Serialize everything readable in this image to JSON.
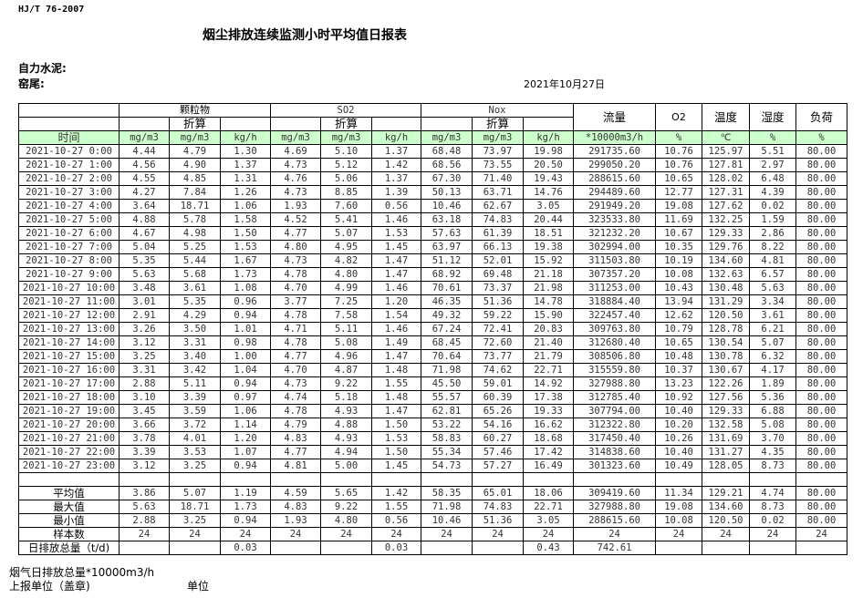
{
  "standard": "HJ/T  76-2007",
  "title": "烟尘排放连续监测小时平均值日报表",
  "company": "自力水泥:",
  "kiln": "窑尾:",
  "date": "2021年10月27日",
  "header": {
    "particulate": "颗粒物",
    "so2": "SO2",
    "nox": "Nox",
    "converted": "折算",
    "flow": "流量",
    "o2": "O2",
    "temperature": "温度",
    "humidity": "湿度",
    "load": "负荷",
    "time": "时间",
    "units": [
      "mg/m3",
      "mg/m3",
      "kg/h",
      "mg/m3",
      "mg/m3",
      "kg/h",
      "mg/m3",
      "mg/m3",
      "kg/h",
      "*10000m3/h",
      "%",
      "℃",
      "%",
      "%"
    ]
  },
  "rows": [
    [
      "2021-10-27 0:00",
      "4.44",
      "4.79",
      "1.30",
      "4.69",
      "5.10",
      "1.37",
      "68.48",
      "73.97",
      "19.98",
      "291735.60",
      "10.76",
      "125.97",
      "5.51",
      "80.00"
    ],
    [
      "2021-10-27 1:00",
      "4.56",
      "4.90",
      "1.37",
      "4.73",
      "5.12",
      "1.42",
      "68.56",
      "73.55",
      "20.50",
      "299050.20",
      "10.76",
      "127.81",
      "2.97",
      "80.00"
    ],
    [
      "2021-10-27 2:00",
      "4.55",
      "4.85",
      "1.31",
      "4.76",
      "5.06",
      "1.37",
      "67.30",
      "71.40",
      "19.43",
      "288615.60",
      "10.65",
      "128.02",
      "6.48",
      "80.00"
    ],
    [
      "2021-10-27 3:00",
      "4.27",
      "7.84",
      "1.26",
      "4.73",
      "8.85",
      "1.39",
      "50.13",
      "63.71",
      "14.76",
      "294489.60",
      "12.77",
      "127.31",
      "4.39",
      "80.00"
    ],
    [
      "2021-10-27 4:00",
      "3.64",
      "18.71",
      "1.06",
      "1.93",
      "7.60",
      "0.56",
      "10.46",
      "62.67",
      "3.05",
      "291949.20",
      "19.08",
      "127.62",
      "0.02",
      "80.00"
    ],
    [
      "2021-10-27 5:00",
      "4.88",
      "5.78",
      "1.58",
      "4.52",
      "5.41",
      "1.46",
      "63.18",
      "74.83",
      "20.44",
      "323533.80",
      "11.69",
      "132.25",
      "1.59",
      "80.00"
    ],
    [
      "2021-10-27 6:00",
      "4.67",
      "4.98",
      "1.50",
      "4.77",
      "5.07",
      "1.53",
      "57.63",
      "61.39",
      "18.51",
      "321232.20",
      "10.67",
      "129.33",
      "2.86",
      "80.00"
    ],
    [
      "2021-10-27 7:00",
      "5.04",
      "5.25",
      "1.53",
      "4.80",
      "4.95",
      "1.45",
      "63.97",
      "66.13",
      "19.38",
      "302994.00",
      "10.35",
      "129.76",
      "8.22",
      "80.00"
    ],
    [
      "2021-10-27 8:00",
      "5.35",
      "5.44",
      "1.67",
      "4.73",
      "4.82",
      "1.47",
      "51.12",
      "52.01",
      "15.92",
      "311503.80",
      "10.19",
      "134.60",
      "4.81",
      "80.00"
    ],
    [
      "2021-10-27 9:00",
      "5.63",
      "5.68",
      "1.73",
      "4.78",
      "4.80",
      "1.47",
      "68.92",
      "69.48",
      "21.18",
      "307357.20",
      "10.08",
      "132.63",
      "6.57",
      "80.00"
    ],
    [
      "2021-10-27 10:00",
      "3.48",
      "3.61",
      "1.08",
      "4.70",
      "4.99",
      "1.46",
      "70.61",
      "73.37",
      "21.98",
      "311253.00",
      "10.43",
      "130.48",
      "5.63",
      "80.00"
    ],
    [
      "2021-10-27 11:00",
      "3.01",
      "5.35",
      "0.96",
      "3.77",
      "7.25",
      "1.20",
      "46.35",
      "51.36",
      "14.78",
      "318884.40",
      "13.94",
      "131.29",
      "3.34",
      "80.00"
    ],
    [
      "2021-10-27 12:00",
      "2.91",
      "4.29",
      "0.94",
      "4.78",
      "7.58",
      "1.54",
      "49.32",
      "59.22",
      "15.90",
      "322457.40",
      "12.62",
      "120.50",
      "3.61",
      "80.00"
    ],
    [
      "2021-10-27 13:00",
      "3.26",
      "3.50",
      "1.01",
      "4.71",
      "5.11",
      "1.46",
      "67.24",
      "72.41",
      "20.83",
      "309763.80",
      "10.79",
      "128.78",
      "6.21",
      "80.00"
    ],
    [
      "2021-10-27 14:00",
      "3.12",
      "3.31",
      "0.98",
      "4.78",
      "5.08",
      "1.49",
      "68.45",
      "72.60",
      "21.40",
      "312680.40",
      "10.65",
      "130.54",
      "5.07",
      "80.00"
    ],
    [
      "2021-10-27 15:00",
      "3.25",
      "3.40",
      "1.00",
      "4.77",
      "4.96",
      "1.47",
      "70.64",
      "73.77",
      "21.79",
      "308506.80",
      "10.48",
      "130.78",
      "6.32",
      "80.00"
    ],
    [
      "2021-10-27 16:00",
      "3.31",
      "3.42",
      "1.04",
      "4.70",
      "4.87",
      "1.48",
      "71.98",
      "74.62",
      "22.71",
      "315559.80",
      "10.37",
      "130.67",
      "4.17",
      "80.00"
    ],
    [
      "2021-10-27 17:00",
      "2.88",
      "5.11",
      "0.94",
      "4.73",
      "9.22",
      "1.55",
      "45.50",
      "59.01",
      "14.92",
      "327988.80",
      "13.23",
      "122.26",
      "1.89",
      "80.00"
    ],
    [
      "2021-10-27 18:00",
      "3.10",
      "3.39",
      "0.97",
      "4.74",
      "5.18",
      "1.48",
      "55.57",
      "60.39",
      "17.38",
      "312785.40",
      "10.92",
      "127.56",
      "5.36",
      "80.00"
    ],
    [
      "2021-10-27 19:00",
      "3.45",
      "3.59",
      "1.06",
      "4.78",
      "4.93",
      "1.47",
      "62.81",
      "65.26",
      "19.33",
      "307794.00",
      "10.40",
      "129.33",
      "6.88",
      "80.00"
    ],
    [
      "2021-10-27 20:00",
      "3.66",
      "3.72",
      "1.14",
      "4.79",
      "4.88",
      "1.50",
      "53.22",
      "54.16",
      "16.62",
      "312322.80",
      "10.20",
      "132.58",
      "5.08",
      "80.00"
    ],
    [
      "2021-10-27 21:00",
      "3.78",
      "4.01",
      "1.20",
      "4.83",
      "4.93",
      "1.53",
      "58.83",
      "60.27",
      "18.68",
      "317450.40",
      "10.26",
      "131.69",
      "3.70",
      "80.00"
    ],
    [
      "2021-10-27 22:00",
      "3.39",
      "3.53",
      "1.07",
      "4.77",
      "4.94",
      "1.50",
      "55.34",
      "57.46",
      "17.42",
      "314838.60",
      "10.40",
      "131.27",
      "4.35",
      "80.00"
    ],
    [
      "2021-10-27 23:00",
      "3.12",
      "3.25",
      "0.94",
      "4.81",
      "5.00",
      "1.45",
      "54.73",
      "57.27",
      "16.49",
      "301323.60",
      "10.49",
      "128.05",
      "8.73",
      "80.00"
    ]
  ],
  "summary": [
    [
      "平均值",
      "3.86",
      "5.07",
      "1.19",
      "4.59",
      "5.65",
      "1.42",
      "58.35",
      "65.01",
      "18.06",
      "309419.60",
      "11.34",
      "129.21",
      "4.74",
      "80.00"
    ],
    [
      "最大值",
      "5.63",
      "18.71",
      "1.73",
      "4.83",
      "9.22",
      "1.55",
      "71.98",
      "74.83",
      "22.71",
      "327988.80",
      "19.08",
      "134.60",
      "8.73",
      "80.00"
    ],
    [
      "最小值",
      "2.88",
      "3.25",
      "0.94",
      "1.93",
      "4.80",
      "0.56",
      "10.46",
      "51.36",
      "3.05",
      "288615.60",
      "10.08",
      "120.50",
      "0.02",
      "80.00"
    ],
    [
      "样本数",
      "24",
      "24",
      "24",
      "24",
      "24",
      "24",
      "24",
      "24",
      "24",
      "24",
      "24",
      "24",
      "24",
      "24"
    ],
    [
      "日排放总量（t/d)",
      "",
      "",
      "0.03",
      "",
      "",
      "0.03",
      "",
      "",
      "0.43",
      "742.61",
      "",
      "",
      "",
      ""
    ]
  ],
  "footer": {
    "flue_gas_total": "烟气日排放总量*10000m3/h",
    "reporting_unit": "上报单位（盖章)",
    "unit": "单位"
  }
}
